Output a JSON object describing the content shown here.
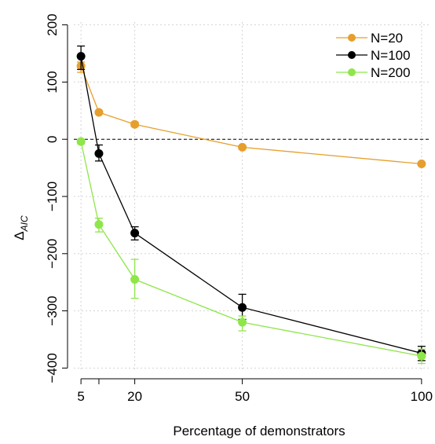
{
  "chart_data": {
    "type": "line",
    "title": "",
    "xlabel": "Percentage of demonstrators",
    "ylabel": "Δ",
    "ylabel_sub": "AIC",
    "xlim": [
      3,
      102
    ],
    "ylim": [
      -405,
      205
    ],
    "x_ticks": [
      5,
      20,
      50,
      100
    ],
    "x_tick_labels": [
      "5",
      "20",
      "50",
      "100"
    ],
    "y_ticks": [
      -400,
      -300,
      -200,
      -100,
      0,
      100,
      200
    ],
    "y_tick_labels": [
      "−400",
      "−300",
      "−200",
      "−100",
      "0",
      "100",
      "200"
    ],
    "grid": true,
    "reference_line": 0,
    "legend_position": "top-right",
    "series": [
      {
        "name": "N=20",
        "color": "#E69F2C",
        "x": [
          5,
          10,
          20,
          50,
          100
        ],
        "y": [
          128,
          47,
          26,
          -14,
          -43
        ],
        "err_low": [
          117,
          44,
          22,
          -17,
          -45
        ],
        "err_high": [
          135,
          50,
          30,
          -11,
          -41
        ]
      },
      {
        "name": "N=100",
        "color": "#000000",
        "x": [
          5,
          10,
          20,
          50,
          100
        ],
        "y": [
          145,
          -25,
          -164,
          -294,
          -374
        ],
        "err_low": [
          122,
          -38,
          -176,
          -315,
          -387
        ],
        "err_high": [
          163,
          -10,
          -153,
          -271,
          -362
        ]
      },
      {
        "name": "N=200",
        "color": "#8EE64A",
        "x": [
          5,
          10,
          20,
          50,
          100
        ],
        "y": [
          -4,
          -149,
          -245,
          -320,
          -379
        ],
        "err_low": [
          -8,
          -162,
          -278,
          -335,
          -392
        ],
        "err_high": [
          0,
          -138,
          -210,
          -309,
          -367
        ]
      }
    ]
  }
}
